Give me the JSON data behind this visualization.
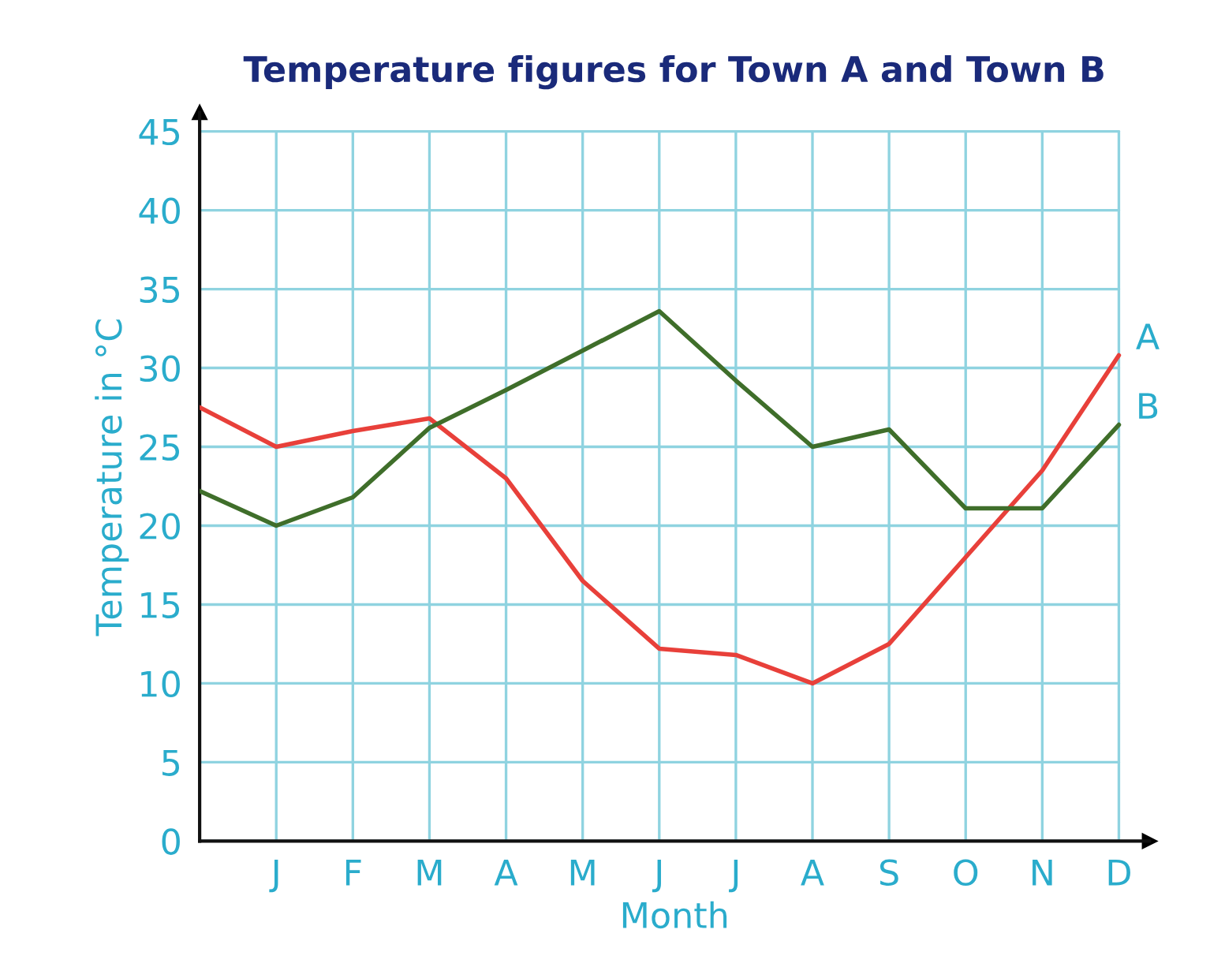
{
  "chart_data": {
    "type": "line",
    "title": "Temperature figures for Town A and Town B",
    "xlabel": "Month",
    "ylabel": "Temperature in °C",
    "categories": [
      null,
      "J",
      "F",
      "M",
      "A",
      "M",
      "J",
      "J",
      "A",
      "S",
      "O",
      "N",
      "D"
    ],
    "series": [
      {
        "name": "A",
        "color": "#e8403a",
        "values": [
          27.5,
          25,
          26,
          26.8,
          23,
          16.5,
          12.2,
          11.8,
          10,
          12.5,
          18,
          23.5,
          30.8
        ]
      },
      {
        "name": "B",
        "color": "#3f6e2a",
        "values": [
          22.2,
          20,
          21.8,
          26.2,
          28.6,
          31.1,
          33.6,
          29.2,
          25,
          26.1,
          21.1,
          21.1,
          26.4
        ]
      }
    ],
    "ylim": [
      0,
      46.2
    ],
    "yticks": [
      0,
      5,
      10,
      15,
      20,
      25,
      30,
      35,
      40,
      45
    ],
    "grid": true,
    "marker": "none",
    "line_style": "solid"
  }
}
